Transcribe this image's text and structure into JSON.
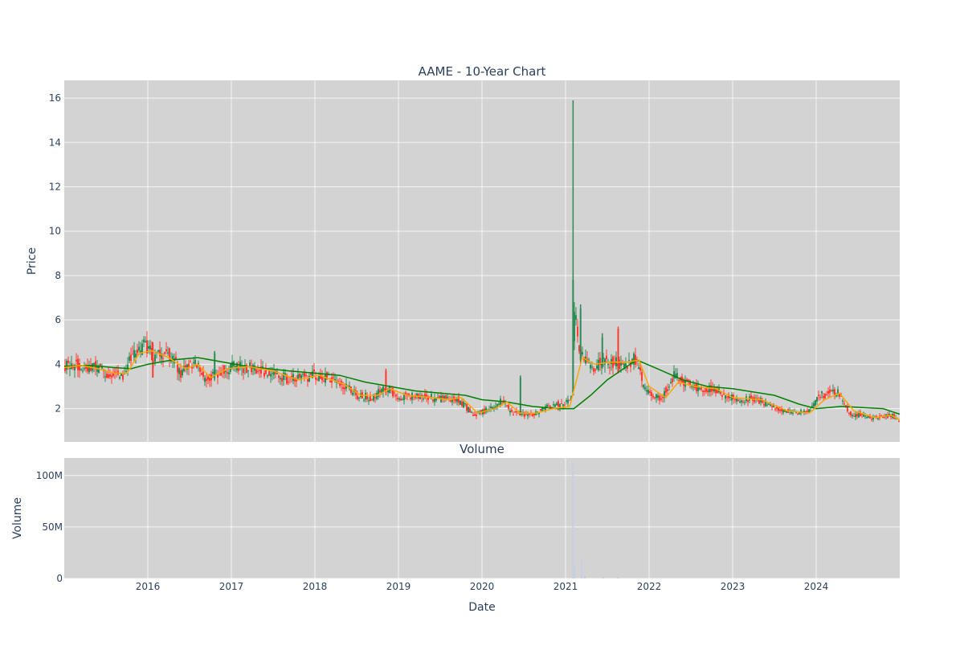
{
  "chart_data": [
    {
      "type": "candlestick",
      "title": "AAME - 10-Year Chart",
      "ylabel": "Price",
      "xlabel": "",
      "x_range": [
        2015.0,
        2025.0
      ],
      "ylim": [
        0.5,
        16.8
      ],
      "y_ticks": [
        2,
        4,
        6,
        8,
        10,
        12,
        14,
        16
      ],
      "y_tick_labels": [
        "2",
        "4",
        "6",
        "8",
        "10",
        "12",
        "14",
        "16"
      ],
      "background": "#d3d3d3",
      "grid": true,
      "colors": {
        "up": "#2e8b57",
        "down": "#ff3b30",
        "ma_short": "#ffa500",
        "ma_long": "#008000"
      },
      "price_path": [
        [
          2015.0,
          3.9
        ],
        [
          2015.2,
          4.0
        ],
        [
          2015.35,
          3.9
        ],
        [
          2015.5,
          3.6
        ],
        [
          2015.7,
          3.5
        ],
        [
          2015.8,
          4.3
        ],
        [
          2015.95,
          4.8
        ],
        [
          2016.1,
          4.3
        ],
        [
          2016.25,
          4.6
        ],
        [
          2016.4,
          3.6
        ],
        [
          2016.55,
          4.1
        ],
        [
          2016.7,
          3.3
        ],
        [
          2016.9,
          3.8
        ],
        [
          2017.1,
          3.9
        ],
        [
          2017.4,
          3.7
        ],
        [
          2017.7,
          3.3
        ],
        [
          2018.0,
          3.5
        ],
        [
          2018.3,
          3.2
        ],
        [
          2018.5,
          2.6
        ],
        [
          2018.7,
          2.5
        ],
        [
          2018.85,
          3.0
        ],
        [
          2019.0,
          2.5
        ],
        [
          2019.3,
          2.6
        ],
        [
          2019.5,
          2.4
        ],
        [
          2019.7,
          2.5
        ],
        [
          2019.9,
          1.7
        ],
        [
          2020.1,
          2.0
        ],
        [
          2020.25,
          2.4
        ],
        [
          2020.35,
          1.8
        ],
        [
          2020.6,
          1.7
        ],
        [
          2020.8,
          2.1
        ],
        [
          2021.05,
          2.3
        ],
        [
          2021.09,
          3.0
        ],
        [
          2021.11,
          7.0
        ],
        [
          2021.14,
          5.0
        ],
        [
          2021.2,
          4.3
        ],
        [
          2021.3,
          3.9
        ],
        [
          2021.5,
          4.1
        ],
        [
          2021.7,
          4.0
        ],
        [
          2021.85,
          4.3
        ],
        [
          2021.95,
          2.8
        ],
        [
          2022.15,
          2.5
        ],
        [
          2022.3,
          3.5
        ],
        [
          2022.5,
          3.0
        ],
        [
          2022.75,
          2.9
        ],
        [
          2022.95,
          2.5
        ],
        [
          2023.3,
          2.4
        ],
        [
          2023.6,
          1.9
        ],
        [
          2023.9,
          1.8
        ],
        [
          2024.05,
          2.6
        ],
        [
          2024.25,
          2.8
        ],
        [
          2024.4,
          1.8
        ],
        [
          2024.7,
          1.6
        ],
        [
          2024.9,
          1.7
        ],
        [
          2025.0,
          1.45
        ]
      ],
      "spikes": [
        {
          "x": 2021.09,
          "low": 3.6,
          "high": 15.9,
          "open": 2.6,
          "close": 7.8
        },
        {
          "x": 2021.18,
          "low": 4.0,
          "high": 6.7,
          "open": 4.2,
          "close": 6.5
        },
        {
          "x": 2021.44,
          "low": 3.8,
          "high": 5.4,
          "open": 4.1,
          "close": 5.2
        },
        {
          "x": 2021.63,
          "low": 3.6,
          "high": 5.7,
          "open": 5.6,
          "close": 3.9
        },
        {
          "x": 2020.46,
          "low": 1.8,
          "high": 3.5,
          "open": 1.9,
          "close": 3.4
        },
        {
          "x": 2018.85,
          "low": 2.6,
          "high": 3.8,
          "open": 3.7,
          "close": 2.8
        },
        {
          "x": 2016.06,
          "low": 3.4,
          "high": 5.0,
          "open": 4.9,
          "close": 3.4
        },
        {
          "x": 2016.8,
          "low": 3.3,
          "high": 4.6,
          "open": 3.5,
          "close": 4.5
        }
      ],
      "ma_long": [
        [
          2015.0,
          3.9
        ],
        [
          2015.3,
          3.95
        ],
        [
          2015.6,
          3.85
        ],
        [
          2015.8,
          3.8
        ],
        [
          2016.0,
          4.0
        ],
        [
          2016.3,
          4.2
        ],
        [
          2016.6,
          4.3
        ],
        [
          2016.9,
          4.1
        ],
        [
          2017.2,
          3.9
        ],
        [
          2017.7,
          3.7
        ],
        [
          2018.0,
          3.6
        ],
        [
          2018.3,
          3.5
        ],
        [
          2018.6,
          3.2
        ],
        [
          2018.9,
          3.0
        ],
        [
          2019.2,
          2.8
        ],
        [
          2019.5,
          2.7
        ],
        [
          2019.8,
          2.6
        ],
        [
          2020.0,
          2.4
        ],
        [
          2020.3,
          2.3
        ],
        [
          2020.6,
          2.1
        ],
        [
          2020.9,
          2.0
        ],
        [
          2021.1,
          2.0
        ],
        [
          2021.3,
          2.6
        ],
        [
          2021.5,
          3.3
        ],
        [
          2021.85,
          4.2
        ],
        [
          2022.1,
          3.8
        ],
        [
          2022.4,
          3.3
        ],
        [
          2022.7,
          3.0
        ],
        [
          2023.0,
          2.9
        ],
        [
          2023.5,
          2.6
        ],
        [
          2023.8,
          2.2
        ],
        [
          2024.0,
          2.0
        ],
        [
          2024.3,
          2.1
        ],
        [
          2024.8,
          2.0
        ],
        [
          2025.0,
          1.75
        ]
      ],
      "ma_short": [
        [
          2015.0,
          3.85
        ],
        [
          2015.2,
          3.95
        ],
        [
          2015.4,
          3.8
        ],
        [
          2015.6,
          3.6
        ],
        [
          2015.75,
          3.6
        ],
        [
          2015.9,
          4.5
        ],
        [
          2016.05,
          4.6
        ],
        [
          2016.25,
          4.3
        ],
        [
          2016.45,
          3.8
        ],
        [
          2016.6,
          4.0
        ],
        [
          2016.75,
          3.4
        ],
        [
          2016.95,
          3.8
        ],
        [
          2017.2,
          3.9
        ],
        [
          2017.5,
          3.7
        ],
        [
          2017.8,
          3.3
        ],
        [
          2018.05,
          3.5
        ],
        [
          2018.35,
          3.1
        ],
        [
          2018.55,
          2.6
        ],
        [
          2018.75,
          2.6
        ],
        [
          2018.9,
          2.9
        ],
        [
          2019.1,
          2.6
        ],
        [
          2019.4,
          2.5
        ],
        [
          2019.6,
          2.4
        ],
        [
          2019.75,
          2.5
        ],
        [
          2019.95,
          1.8
        ],
        [
          2020.15,
          2.0
        ],
        [
          2020.3,
          2.3
        ],
        [
          2020.45,
          1.8
        ],
        [
          2020.65,
          1.8
        ],
        [
          2020.85,
          2.0
        ],
        [
          2021.05,
          2.1
        ],
        [
          2021.2,
          4.3
        ],
        [
          2021.35,
          4.0
        ],
        [
          2021.55,
          4.1
        ],
        [
          2021.75,
          4.1
        ],
        [
          2021.88,
          4.2
        ],
        [
          2022.0,
          3.0
        ],
        [
          2022.2,
          2.5
        ],
        [
          2022.35,
          3.2
        ],
        [
          2022.55,
          3.0
        ],
        [
          2022.8,
          2.9
        ],
        [
          2023.0,
          2.5
        ],
        [
          2023.35,
          2.4
        ],
        [
          2023.65,
          1.9
        ],
        [
          2023.92,
          1.8
        ],
        [
          2024.1,
          2.4
        ],
        [
          2024.28,
          2.7
        ],
        [
          2024.45,
          1.9
        ],
        [
          2024.7,
          1.6
        ],
        [
          2024.9,
          1.7
        ],
        [
          2025.0,
          1.5
        ]
      ]
    },
    {
      "type": "bar",
      "title": "Volume",
      "ylabel": "Volume",
      "xlabel": "Date",
      "x_range": [
        2015.0,
        2025.0
      ],
      "ylim": [
        0,
        117000000
      ],
      "y_ticks": [
        0,
        50000000,
        100000000
      ],
      "y_tick_labels": [
        "0",
        "50M",
        "100M"
      ],
      "x_ticks": [
        2016,
        2017,
        2018,
        2019,
        2020,
        2021,
        2022,
        2023,
        2024
      ],
      "x_tick_labels": [
        "2016",
        "2017",
        "2018",
        "2019",
        "2020",
        "2021",
        "2022",
        "2023",
        "2024"
      ],
      "background": "#d3d3d3",
      "grid": true,
      "bar_color": "#c8cfe0",
      "bars": [
        {
          "x": 2021.09,
          "value": 112000000
        },
        {
          "x": 2021.11,
          "value": 14000000
        },
        {
          "x": 2021.19,
          "value": 19000000
        },
        {
          "x": 2021.23,
          "value": 3000000
        },
        {
          "x": 2021.45,
          "value": 2500000
        },
        {
          "x": 2021.63,
          "value": 2000000
        }
      ]
    }
  ]
}
